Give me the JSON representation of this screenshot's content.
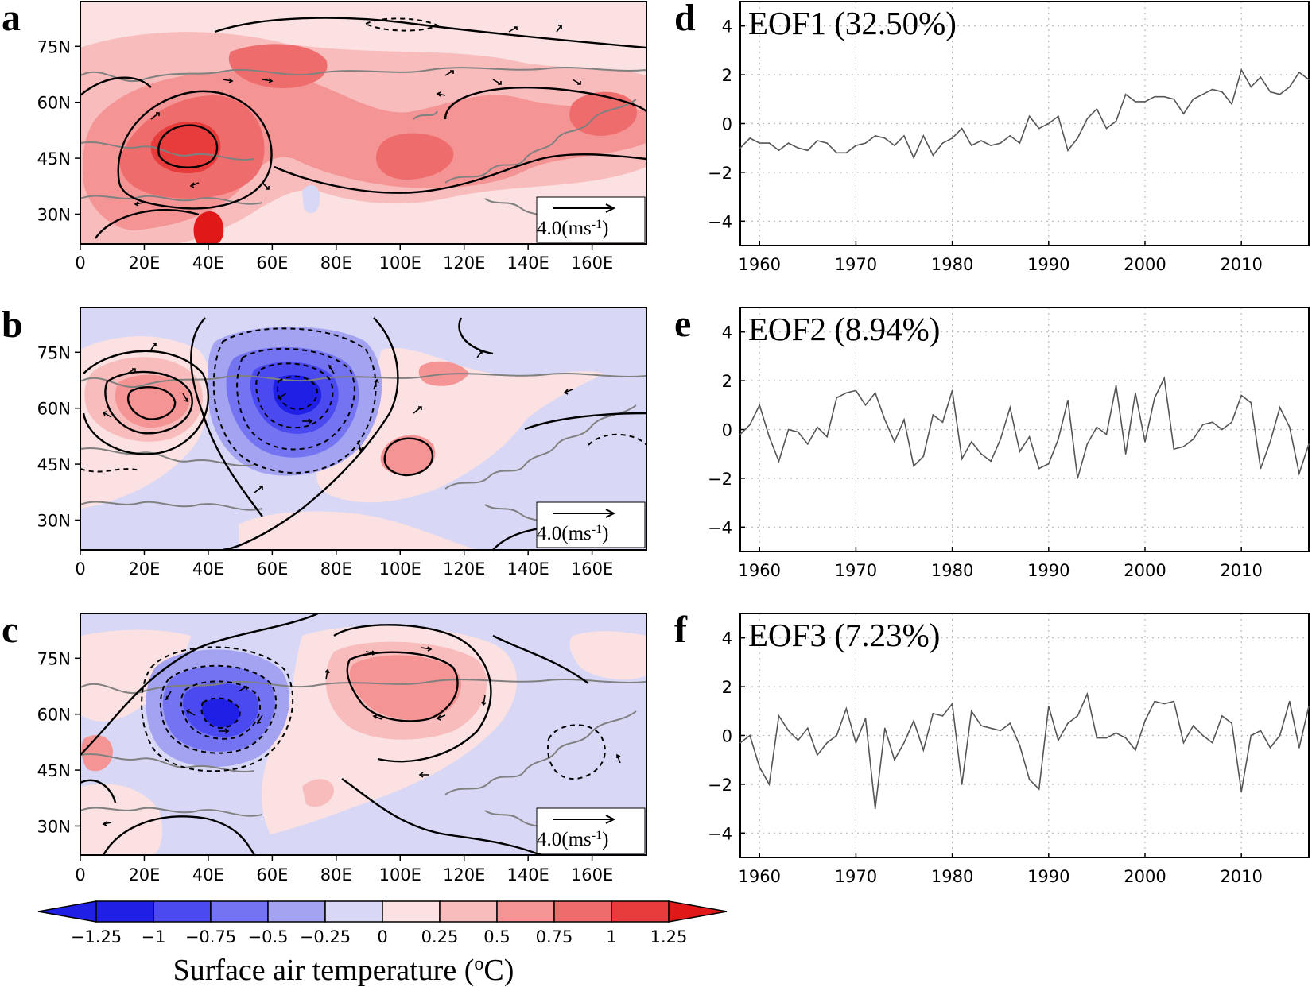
{
  "colors": {
    "land": "#808080",
    "negative_levels": [
      "#1f1fe6",
      "#4a4af0",
      "#7474f2",
      "#a3a3f2",
      "#d8d8f6"
    ],
    "positive_levels": [
      "#fbe1e1",
      "#f8bcbc",
      "#f49494",
      "#ef6c6c",
      "#e83c3c",
      "#e01818"
    ],
    "series_line": "#555555"
  },
  "maps": [
    {
      "letter": "a",
      "vector_label": "4.0",
      "vector_unit": "(ms",
      "vector_exp": "-1",
      "vector_close": ")",
      "base_level": "positive"
    },
    {
      "letter": "b",
      "vector_label": "4.0",
      "vector_unit": "(ms",
      "vector_exp": "-1",
      "vector_close": ")",
      "base_level": "negative"
    },
    {
      "letter": "c",
      "vector_label": "4.0",
      "vector_unit": "(ms",
      "vector_exp": "-1",
      "vector_close": ")",
      "base_level": "negative"
    }
  ],
  "map_lon_ticks": [
    "0",
    "20E",
    "40E",
    "60E",
    "80E",
    "100E",
    "120E",
    "140E",
    "160E"
  ],
  "map_lat_ticks": [
    "75N",
    "60N",
    "45N",
    "30N"
  ],
  "colorbar": {
    "levels": [
      "-1.25",
      "-1",
      "-0.75",
      "-0.5",
      "-0.25",
      "0",
      "0.25",
      "0.5",
      "0.75",
      "1",
      "1.25"
    ],
    "title_text": "Surface air temperature (",
    "title_sup": "o",
    "title_unit": "C)"
  },
  "chart_data": [
    {
      "type": "line",
      "letter": "d",
      "title": "EOF1 (32.50%)",
      "xlim": [
        1958,
        2017
      ],
      "ylim": [
        -5,
        5
      ],
      "xticks": [
        1960,
        1970,
        1980,
        1990,
        2000,
        2010
      ],
      "yticks": [
        4,
        2,
        0,
        -2,
        -4
      ],
      "grid": true,
      "x_start": 1958,
      "values": [
        -1.0,
        -0.6,
        -0.8,
        -0.8,
        -1.1,
        -0.8,
        -1.0,
        -1.1,
        -0.7,
        -0.8,
        -1.2,
        -1.2,
        -0.9,
        -0.8,
        -0.5,
        -0.6,
        -0.9,
        -0.5,
        -1.4,
        -0.5,
        -1.3,
        -0.8,
        -0.6,
        -0.2,
        -0.9,
        -0.7,
        -0.9,
        -0.8,
        -0.5,
        -0.8,
        0.3,
        -0.2,
        0.0,
        0.3,
        -1.1,
        -0.6,
        0.2,
        0.6,
        -0.2,
        0.1,
        1.2,
        0.9,
        0.9,
        1.1,
        1.1,
        1.0,
        0.4,
        1.0,
        1.2,
        1.4,
        1.3,
        0.8,
        2.2,
        1.5,
        1.9,
        1.3,
        1.2,
        1.5,
        2.1,
        1.8
      ]
    },
    {
      "type": "line",
      "letter": "e",
      "title": "EOF2 (8.94%)",
      "xlim": [
        1958,
        2017
      ],
      "ylim": [
        -5,
        5
      ],
      "xticks": [
        1960,
        1970,
        1980,
        1990,
        2000,
        2010
      ],
      "yticks": [
        4,
        2,
        0,
        -2,
        -4
      ],
      "grid": true,
      "x_start": 1958,
      "values": [
        -0.2,
        0.2,
        1.0,
        -0.3,
        -1.3,
        0.0,
        -0.1,
        -0.6,
        0.1,
        -0.3,
        1.3,
        1.5,
        1.6,
        1.0,
        1.5,
        0.4,
        -0.5,
        0.4,
        -1.5,
        -1.1,
        0.6,
        0.3,
        1.6,
        -1.2,
        -0.5,
        -1.0,
        -1.3,
        -0.4,
        0.9,
        -0.9,
        -0.3,
        -1.6,
        -1.4,
        -0.4,
        1.2,
        -2.0,
        -0.6,
        0.1,
        -0.2,
        1.8,
        -1.0,
        1.5,
        -0.5,
        1.3,
        2.1,
        -0.8,
        -0.7,
        -0.4,
        0.2,
        0.3,
        0.0,
        0.3,
        1.4,
        1.1,
        -1.6,
        -0.5,
        0.9,
        0.1,
        -1.8,
        -0.6
      ]
    },
    {
      "type": "line",
      "letter": "f",
      "title": "EOF3 (7.23%)",
      "xlim": [
        1958,
        2017
      ],
      "ylim": [
        -5,
        5
      ],
      "xticks": [
        1960,
        1970,
        1980,
        1990,
        2000,
        2010
      ],
      "yticks": [
        4,
        2,
        0,
        -2,
        -4
      ],
      "grid": true,
      "x_start": 1958,
      "values": [
        -0.3,
        0.0,
        -1.3,
        -2.0,
        0.8,
        0.2,
        -0.2,
        0.3,
        -0.8,
        -0.3,
        0.0,
        1.1,
        -0.3,
        0.7,
        -3.0,
        0.3,
        -1.0,
        -0.3,
        0.6,
        -0.6,
        0.9,
        0.8,
        1.3,
        -2.0,
        1.0,
        0.4,
        0.3,
        0.2,
        0.5,
        -0.4,
        -1.8,
        -2.2,
        1.2,
        -0.2,
        0.5,
        0.8,
        1.7,
        -0.1,
        -0.1,
        0.1,
        -0.1,
        -0.6,
        0.6,
        1.4,
        1.3,
        1.4,
        -0.3,
        0.4,
        0.0,
        -0.3,
        0.8,
        0.5,
        -2.3,
        0.0,
        0.2,
        -0.5,
        0.0,
        1.4,
        -0.5,
        1.2
      ]
    }
  ]
}
